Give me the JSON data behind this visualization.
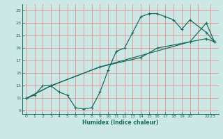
{
  "title": "",
  "xlabel": "Humidex (Indice chaleur)",
  "bg_color": "#cce8e4",
  "line_color": "#1a6b60",
  "grid_color_major": "#e88080",
  "grid_color_minor": "#e0d0d0",
  "xlim": [
    -0.5,
    23.5
  ],
  "ylim": [
    8.5,
    26.0
  ],
  "yticks": [
    9,
    11,
    13,
    15,
    17,
    19,
    21,
    23,
    25
  ],
  "xtick_labels": [
    "0",
    "1",
    "2",
    "3",
    "4",
    "5",
    "6",
    "7",
    "8",
    "9",
    "10",
    "11",
    "12",
    "13",
    "14",
    "15",
    "16",
    "17",
    "18",
    "19",
    "20",
    "",
    "2223"
  ],
  "xtick_positions": [
    0,
    1,
    2,
    3,
    4,
    5,
    6,
    7,
    8,
    9,
    10,
    11,
    12,
    13,
    14,
    15,
    16,
    17,
    18,
    19,
    20,
    21,
    22.5
  ],
  "curve1_x": [
    0,
    1,
    2,
    3,
    4,
    5,
    6,
    7,
    8,
    9,
    10,
    11,
    12,
    13,
    14,
    15,
    16,
    17,
    18,
    19,
    20,
    22,
    23
  ],
  "curve1_y": [
    11,
    11.5,
    13,
    13,
    12,
    11.5,
    9.5,
    9.3,
    9.5,
    12,
    15.5,
    18.5,
    19,
    21.5,
    24,
    24.5,
    24.5,
    24,
    23.5,
    22,
    23.5,
    21.5,
    20
  ],
  "curve2_x": [
    0,
    3,
    9,
    20,
    22,
    23
  ],
  "curve2_y": [
    11,
    13,
    16,
    20,
    20.5,
    20
  ],
  "curve3_x": [
    0,
    3,
    9,
    14,
    16,
    20,
    22,
    23
  ],
  "curve3_y": [
    11,
    13,
    16,
    17.5,
    19,
    20,
    23,
    20
  ]
}
